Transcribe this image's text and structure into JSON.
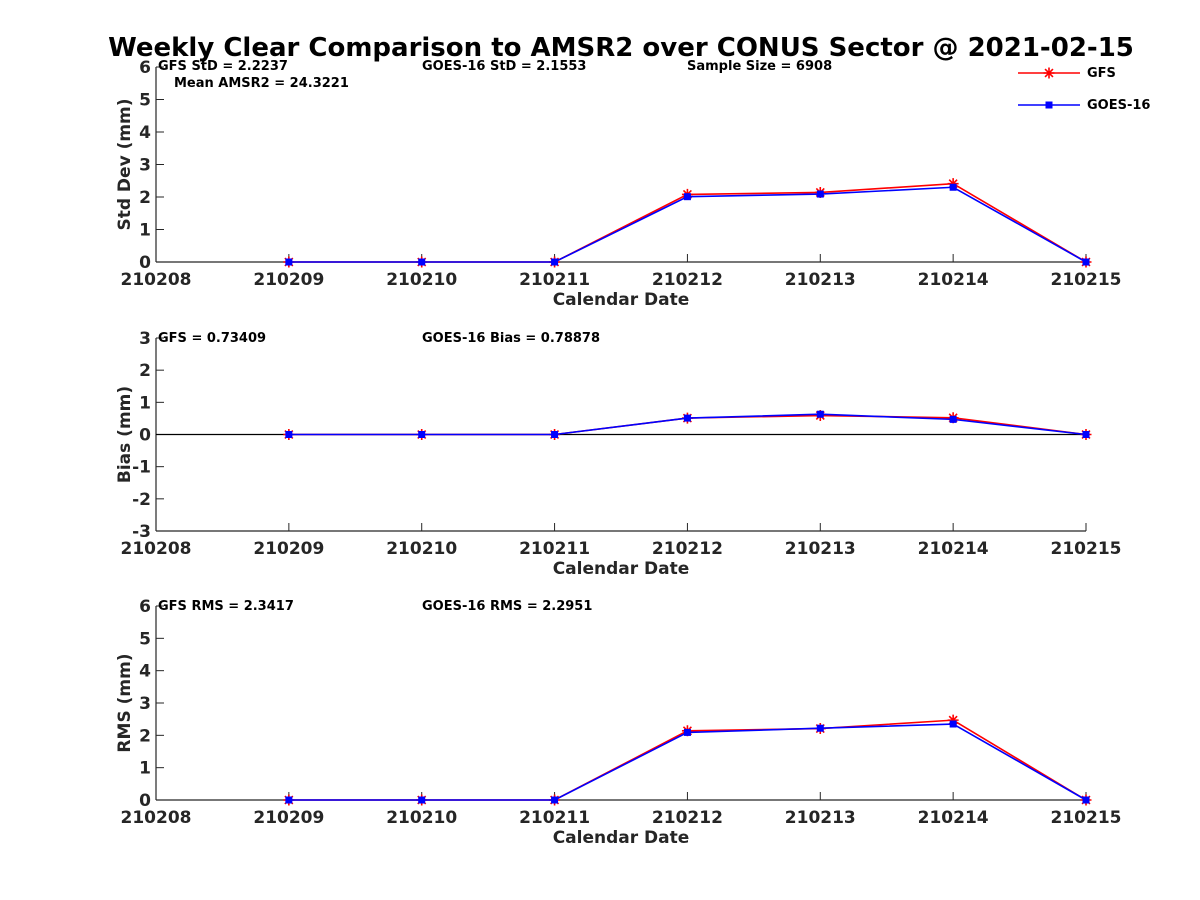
{
  "figure_title": "Weekly Clear Comparison to AMSR2 over CONUS Sector @ 2021-02-15",
  "legend": {
    "placement": "top-right",
    "entries": [
      {
        "label": "GFS",
        "color": "#ff0000",
        "marker": "asterisk"
      },
      {
        "label": "GOES-16",
        "color": "#0000ff",
        "marker": "square"
      }
    ]
  },
  "chart_data": [
    {
      "type": "line",
      "title": "",
      "xlabel": "Calendar Date",
      "ylabel": "Std Dev (mm)",
      "x": [
        "210208",
        "210209",
        "210210",
        "210211",
        "210212",
        "210213",
        "210214",
        "210215"
      ],
      "ylim": [
        0,
        6
      ],
      "yticks": [
        "0",
        "1",
        "2",
        "3",
        "4",
        "5",
        "6"
      ],
      "zero_line": false,
      "annotations": [
        "GFS StD = 2.2237",
        "GOES-16 StD = 2.1553",
        "Sample Size = 6908",
        "Mean AMSR2 = 24.3221"
      ],
      "series": [
        {
          "name": "GFS",
          "color": "#ff0000",
          "marker": "asterisk",
          "values": [
            null,
            0,
            0,
            0,
            2.08,
            2.14,
            2.41,
            0
          ]
        },
        {
          "name": "GOES-16",
          "color": "#0000ff",
          "marker": "square",
          "values": [
            null,
            0,
            0,
            0,
            2.01,
            2.09,
            2.3,
            0
          ]
        }
      ]
    },
    {
      "type": "line",
      "title": "",
      "xlabel": "Calendar Date",
      "ylabel": "Bias (mm)",
      "x": [
        "210208",
        "210209",
        "210210",
        "210211",
        "210212",
        "210213",
        "210214",
        "210215"
      ],
      "ylim": [
        -3,
        3
      ],
      "yticks": [
        "-3",
        "-2",
        "-1",
        "0",
        "1",
        "2",
        "3"
      ],
      "zero_line": true,
      "annotations": [
        "GFS = 0.73409",
        "GOES-16 Bias  = 0.78878"
      ],
      "series": [
        {
          "name": "GFS",
          "color": "#ff0000",
          "marker": "asterisk",
          "values": [
            null,
            0,
            0,
            0,
            0.51,
            0.59,
            0.52,
            0
          ]
        },
        {
          "name": "GOES-16",
          "color": "#0000ff",
          "marker": "square",
          "values": [
            null,
            0,
            0,
            0,
            0.51,
            0.63,
            0.47,
            0
          ]
        }
      ]
    },
    {
      "type": "line",
      "title": "",
      "xlabel": "Calendar Date",
      "ylabel": "RMS (mm)",
      "x": [
        "210208",
        "210209",
        "210210",
        "210211",
        "210212",
        "210213",
        "210214",
        "210215"
      ],
      "ylim": [
        0,
        6
      ],
      "yticks": [
        "0",
        "1",
        "2",
        "3",
        "4",
        "5",
        "6"
      ],
      "zero_line": false,
      "annotations": [
        "GFS RMS = 2.3417",
        "GOES-16 RMS = 2.2951"
      ],
      "series": [
        {
          "name": "GFS",
          "color": "#ff0000",
          "marker": "asterisk",
          "values": [
            null,
            0,
            0,
            0,
            2.14,
            2.21,
            2.47,
            0
          ]
        },
        {
          "name": "GOES-16",
          "color": "#0000ff",
          "marker": "square",
          "values": [
            null,
            0,
            0,
            0,
            2.09,
            2.22,
            2.35,
            0
          ]
        }
      ]
    }
  ]
}
